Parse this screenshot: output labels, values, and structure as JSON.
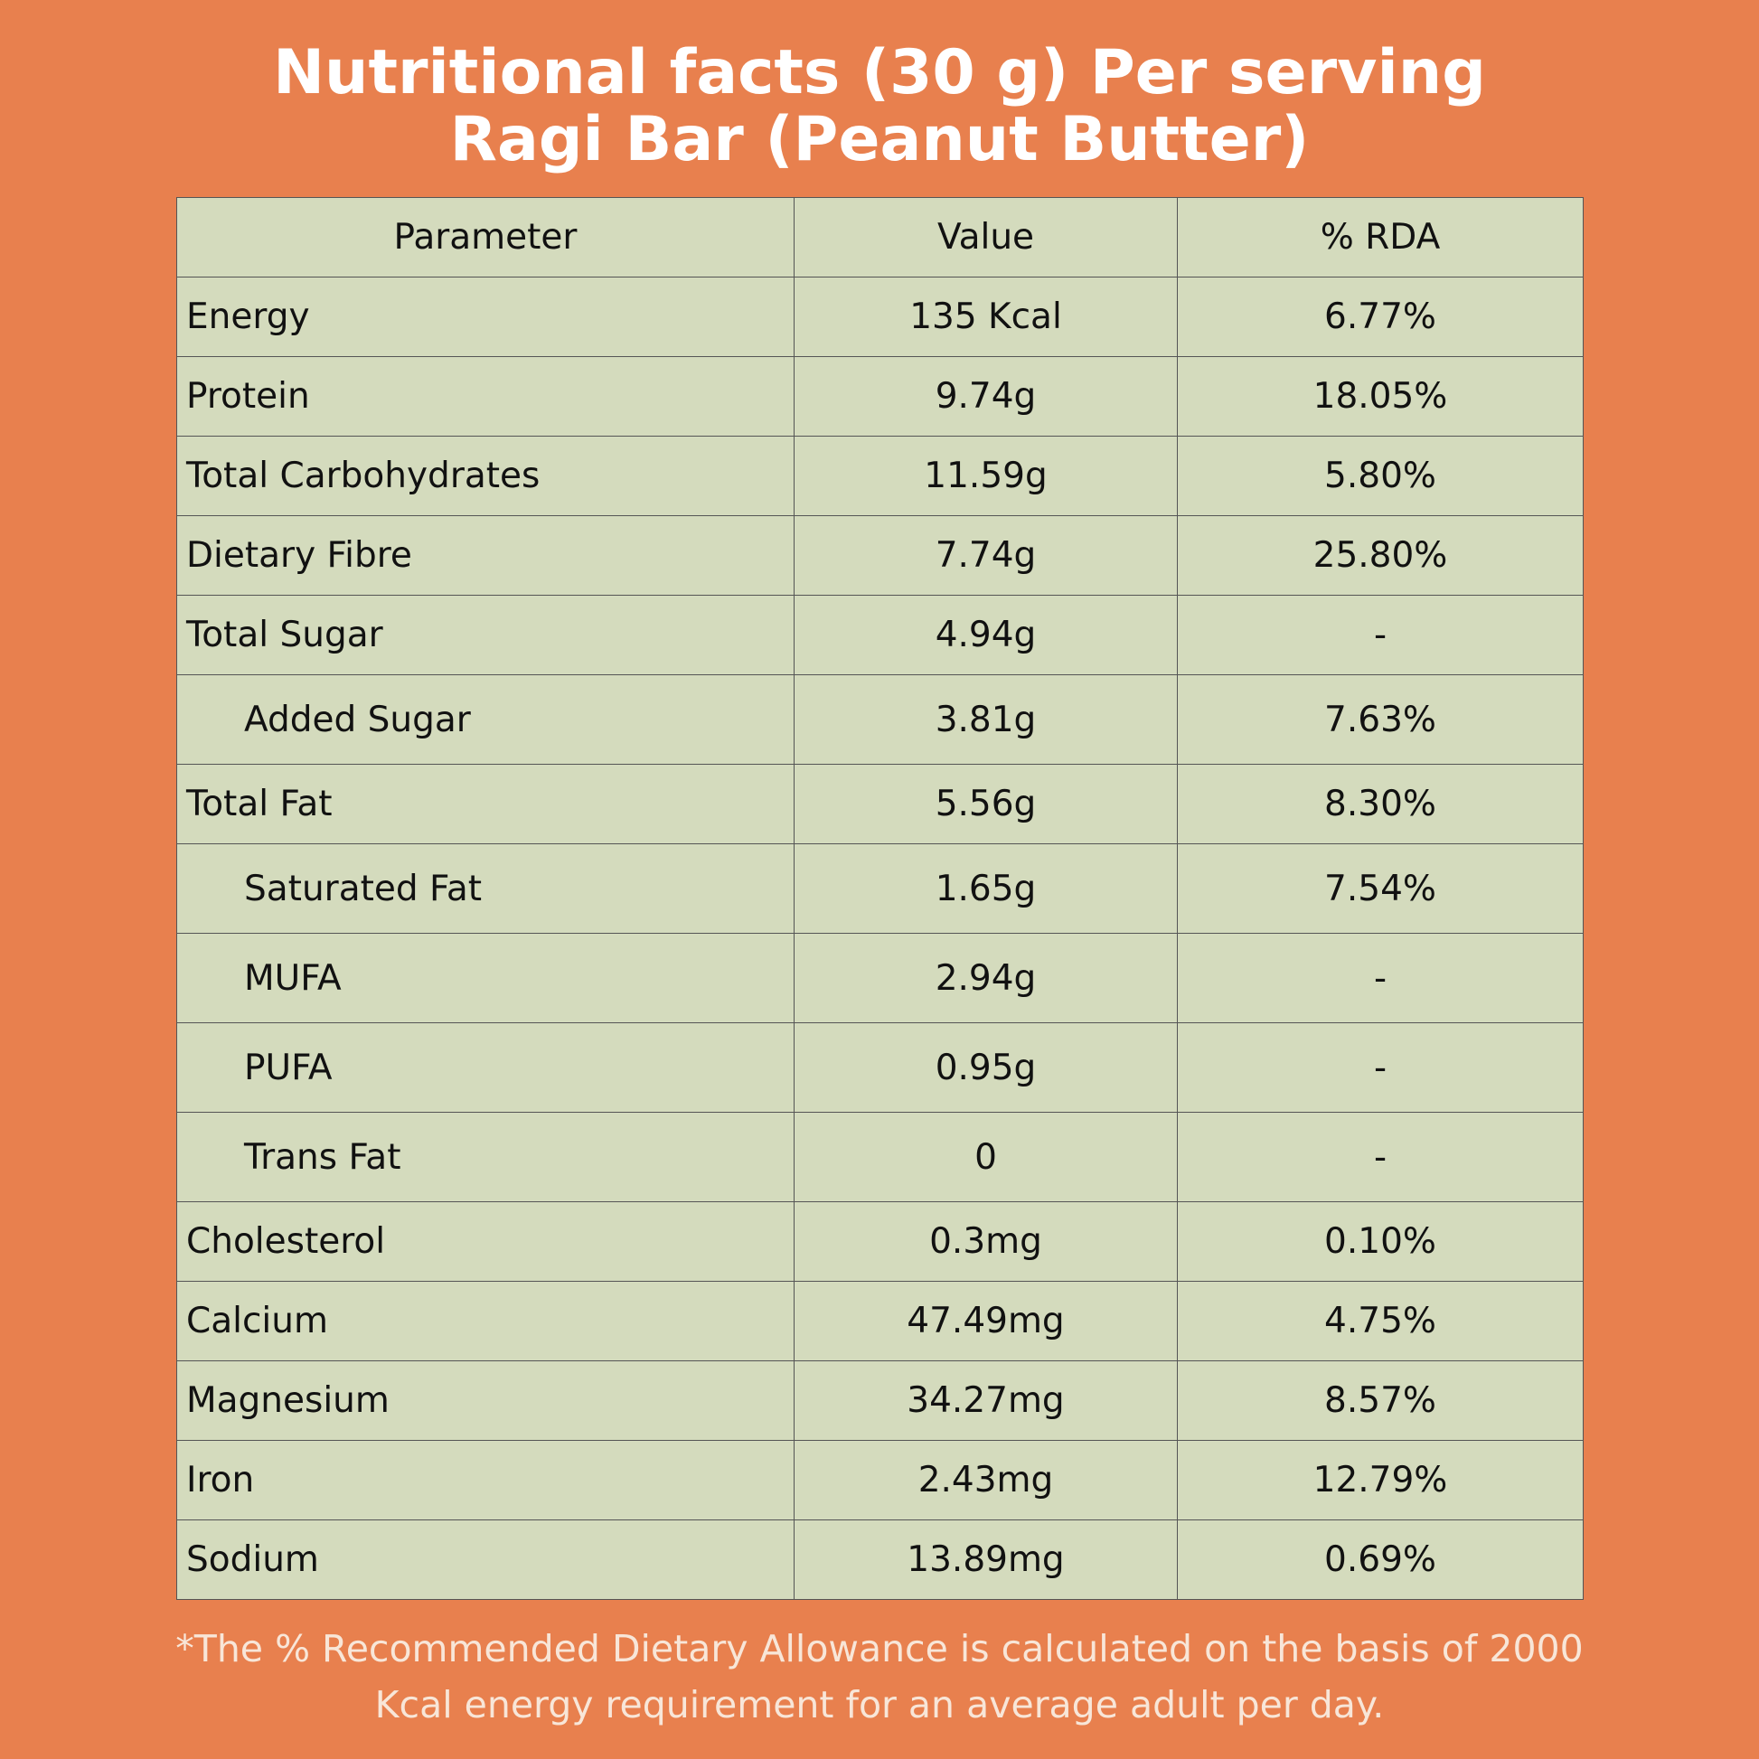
{
  "header": {
    "title": [
      "Nutritional facts (30 g) Per serving",
      "Ragi Bar (Peanut Butter)"
    ]
  },
  "table": {
    "columns": [
      "Parameter",
      "Value",
      "% RDA"
    ],
    "rows": [
      {
        "parameter": "Energy",
        "value": "135 Kcal",
        "rda": "6.77%",
        "indent": false
      },
      {
        "parameter": "Protein",
        "value": "9.74g",
        "rda": "18.05%",
        "indent": false
      },
      {
        "parameter": "Total Carbohydrates",
        "value": "11.59g",
        "rda": "5.80%",
        "indent": false
      },
      {
        "parameter": "Dietary Fibre",
        "value": "7.74g",
        "rda": "25.80%",
        "indent": false
      },
      {
        "parameter": "Total Sugar",
        "value": "4.94g",
        "rda": "-",
        "indent": false
      },
      {
        "parameter": "Added Sugar",
        "value": "3.81g",
        "rda": "7.63%",
        "indent": true
      },
      {
        "parameter": "Total Fat",
        "value": "5.56g",
        "rda": "8.30%",
        "indent": false
      },
      {
        "parameter": "Saturated Fat",
        "value": "1.65g",
        "rda": "7.54%",
        "indent": true
      },
      {
        "parameter": "MUFA",
        "value": "2.94g",
        "rda": "-",
        "indent": true
      },
      {
        "parameter": "PUFA",
        "value": "0.95g",
        "rda": "-",
        "indent": true
      },
      {
        "parameter": "Trans Fat",
        "value": "0",
        "rda": "-",
        "indent": true
      },
      {
        "parameter": "Cholesterol",
        "value": "0.3mg",
        "rda": "0.10%",
        "indent": false
      },
      {
        "parameter": "Calcium",
        "value": "47.49mg",
        "rda": "4.75%",
        "indent": false
      },
      {
        "parameter": "Magnesium",
        "value": "34.27mg",
        "rda": "8.57%",
        "indent": false
      },
      {
        "parameter": "Iron",
        "value": "2.43mg",
        "rda": "12.79%",
        "indent": false
      },
      {
        "parameter": "Sodium",
        "value": "13.89mg",
        "rda": "0.69%",
        "indent": false
      }
    ]
  },
  "footnote": [
    "*The % Recommended Dietary Allowance is calculated on the basis of 2000",
    "Kcal energy requirement for an average adult per day."
  ]
}
